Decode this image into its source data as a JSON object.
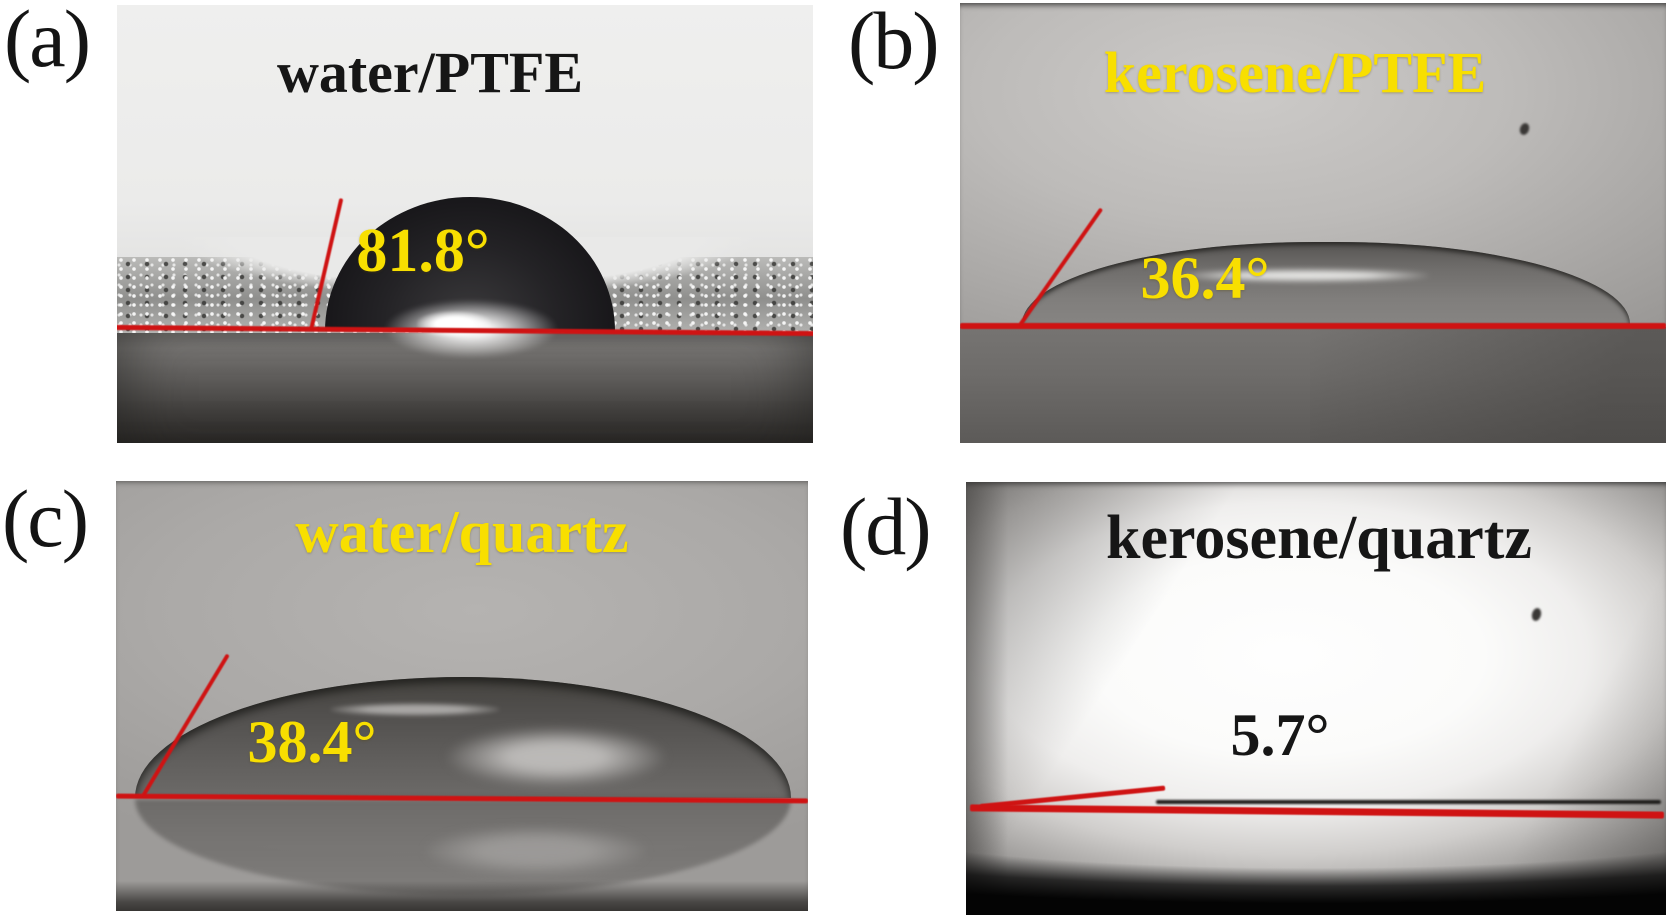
{
  "figure": {
    "colors": {
      "annotation_red": "#cf1313",
      "annotation_yellow": "#f8df00",
      "dark_text": "#161616"
    },
    "panels": [
      {
        "label": "(a)",
        "title": "water/PTFE",
        "angle": "81.8°",
        "title_color": "#161616",
        "angle_color": "#f8df00"
      },
      {
        "label": "(b)",
        "title": "kerosene/PTFE",
        "angle": "36.4°",
        "title_color": "#f8df00",
        "angle_color": "#f8df00"
      },
      {
        "label": "(c)",
        "title": "water/quartz",
        "angle": "38.4°",
        "title_color": "#f8df00",
        "angle_color": "#f8df00"
      },
      {
        "label": "(d)",
        "title": "kerosene/quartz",
        "angle": "5.7°",
        "title_color": "#161616",
        "angle_color": "#161616"
      }
    ]
  }
}
